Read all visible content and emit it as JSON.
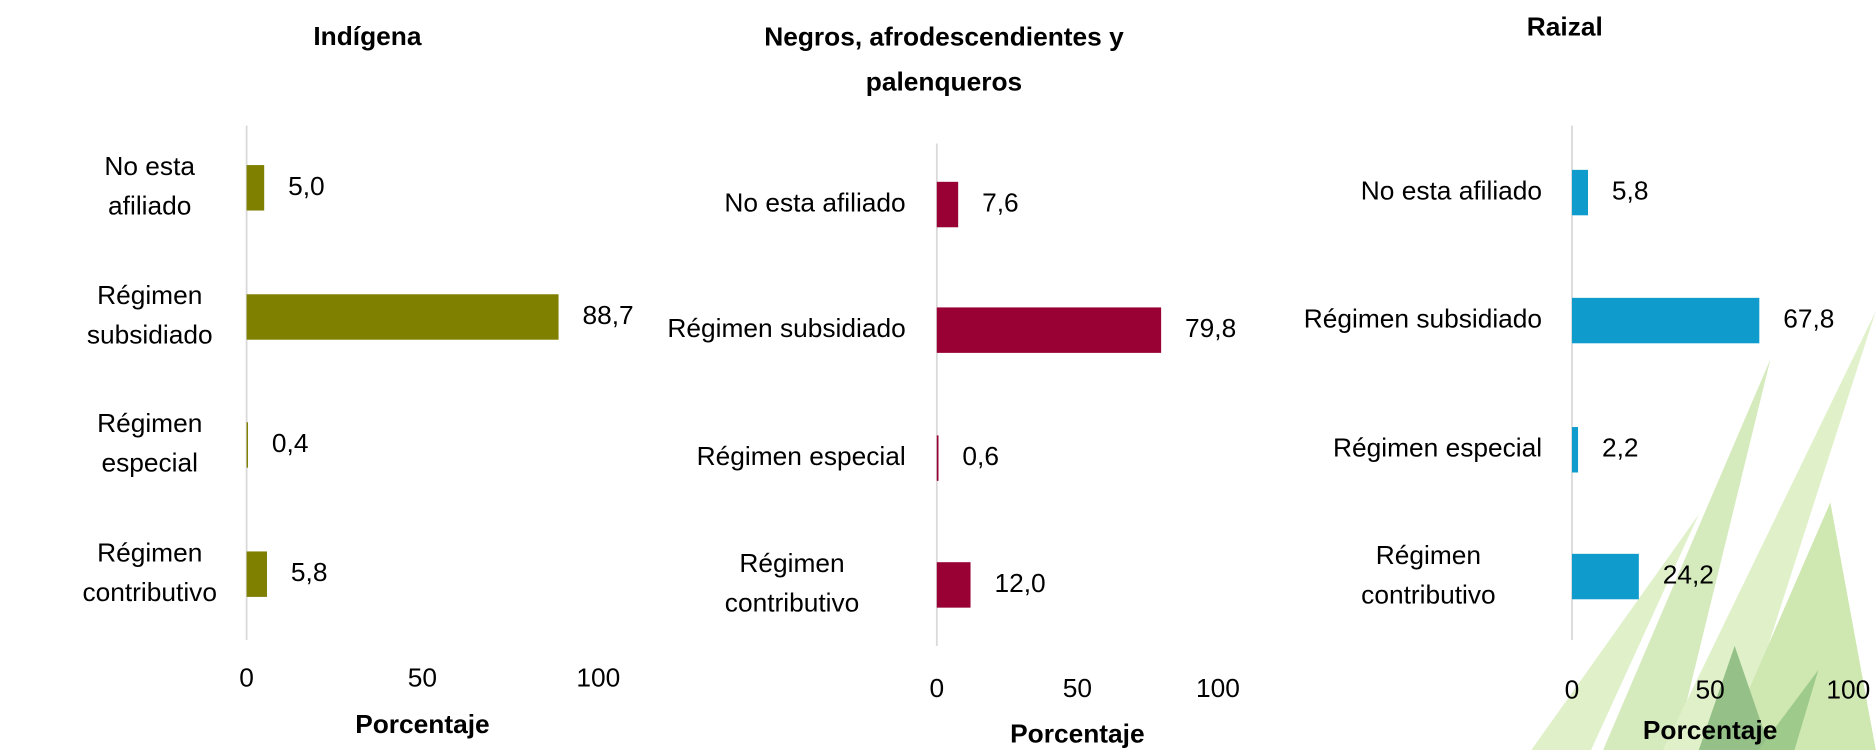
{
  "chart_data": [
    {
      "type": "bar",
      "orientation": "horizontal",
      "title": "Indígena",
      "x_label": "Porcentaje",
      "categories": [
        "No esta afiliado",
        "Régimen subsidiado",
        "Régimen especial",
        "Régimen contributivo"
      ],
      "values": [
        5.0,
        88.7,
        0.4,
        5.8
      ],
      "value_labels": [
        "5,0",
        "88,7",
        "0,4",
        "5,8"
      ],
      "color": "#7f7f00",
      "xlim": [
        0,
        100
      ],
      "xticks": [
        0,
        50,
        100
      ]
    },
    {
      "type": "bar",
      "orientation": "horizontal",
      "title": "Negros, afrodescendientes y palenqueros",
      "x_label": "Porcentaje",
      "categories": [
        "No esta afiliado",
        "Régimen subsidiado",
        "Régimen especial",
        "Régimen contributivo"
      ],
      "values": [
        7.6,
        79.8,
        0.6,
        12.0
      ],
      "value_labels": [
        "7,6",
        "79,8",
        "0,6",
        "12,0"
      ],
      "color": "#990033",
      "xlim": [
        0,
        100
      ],
      "xticks": [
        0,
        50,
        100
      ]
    },
    {
      "type": "bar",
      "orientation": "horizontal",
      "title": "Raizal",
      "x_label": "Porcentaje",
      "categories": [
        "No esta afiliado",
        "Régimen subsidiado",
        "Régimen especial",
        "Régimen contributivo"
      ],
      "values": [
        5.8,
        67.8,
        2.2,
        24.2
      ],
      "value_labels": [
        "5,8",
        "67,8",
        "2,2",
        "24,2"
      ],
      "color": "#0f9ccd",
      "xlim": [
        0,
        100
      ],
      "xticks": [
        0,
        50,
        100
      ]
    }
  ]
}
